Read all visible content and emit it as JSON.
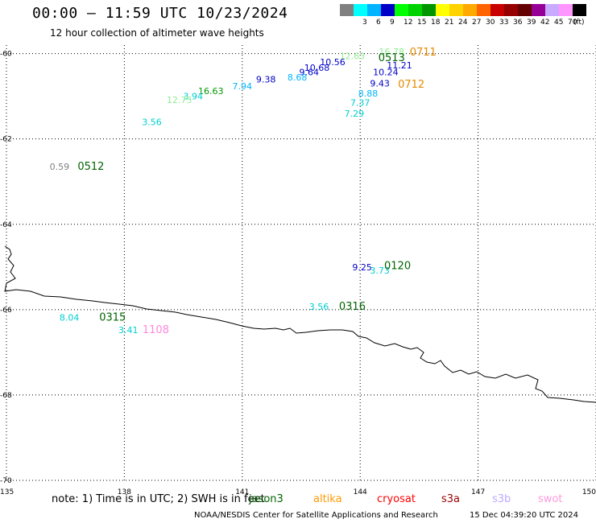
{
  "header": {
    "title": "00:00 – 11:59 UTC 10/23/2024",
    "subtitle": "12 hour collection of altimeter wave heights"
  },
  "legend": {
    "unit": "(ft)",
    "bins": [
      {
        "label": "",
        "color": "#808080"
      },
      {
        "label": "3",
        "color": "#00ffff"
      },
      {
        "label": "6",
        "color": "#00b4ff"
      },
      {
        "label": "9",
        "color": "#0000c8"
      },
      {
        "label": "12",
        "color": "#00ff00"
      },
      {
        "label": "15",
        "color": "#00d200"
      },
      {
        "label": "18",
        "color": "#009600"
      },
      {
        "label": "21",
        "color": "#ffff00"
      },
      {
        "label": "24",
        "color": "#ffd200"
      },
      {
        "label": "27",
        "color": "#ffaa00"
      },
      {
        "label": "30",
        "color": "#ff6400"
      },
      {
        "label": "33",
        "color": "#c80000"
      },
      {
        "label": "36",
        "color": "#960000"
      },
      {
        "label": "39",
        "color": "#640000"
      },
      {
        "label": "42",
        "color": "#960096"
      },
      {
        "label": "45",
        "color": "#c8aaff"
      },
      {
        "label": "70",
        "color": "#ff96ff"
      },
      {
        "label": "",
        "color": "#000000"
      }
    ]
  },
  "map": {
    "lon_range": [
      135,
      150
    ],
    "lat_range": [
      -70,
      -59.8
    ],
    "lon_ticks": [
      "135",
      "138",
      "141",
      "144",
      "147",
      "150"
    ],
    "lat_ticks": [
      "-60",
      "-62",
      "-64",
      "-66",
      "-68",
      "-70"
    ],
    "grid": "dotted"
  },
  "observations": [
    {
      "text": "12.63",
      "lon": 143.8,
      "lat": -60.05,
      "color": "#90ee90"
    },
    {
      "text": "16.78",
      "lon": 144.8,
      "lat": -59.95,
      "color": "#90ee90"
    },
    {
      "text": "0513",
      "lon": 144.8,
      "lat": -60.1,
      "color": "#006400",
      "pass": true
    },
    {
      "text": "0711",
      "lon": 145.6,
      "lat": -59.97,
      "color": "#e68a00",
      "pass": true
    },
    {
      "text": "11.21",
      "lon": 145.0,
      "lat": -60.27,
      "color": "#0000c8"
    },
    {
      "text": "10.56",
      "lon": 143.3,
      "lat": -60.2,
      "color": "#0000c8"
    },
    {
      "text": "10.68",
      "lon": 142.9,
      "lat": -60.33,
      "color": "#0000c8"
    },
    {
      "text": "9.64",
      "lon": 142.7,
      "lat": -60.43,
      "color": "#0000c8"
    },
    {
      "text": "10.24",
      "lon": 144.65,
      "lat": -60.43,
      "color": "#0000c8"
    },
    {
      "text": "8.68",
      "lon": 142.4,
      "lat": -60.55,
      "color": "#00b4ff"
    },
    {
      "text": "9.38",
      "lon": 141.6,
      "lat": -60.6,
      "color": "#0000c8"
    },
    {
      "text": "9.43",
      "lon": 144.5,
      "lat": -60.7,
      "color": "#0000c8"
    },
    {
      "text": "0712",
      "lon": 145.3,
      "lat": -60.72,
      "color": "#e68a00",
      "pass": true
    },
    {
      "text": "7.94",
      "lon": 141.0,
      "lat": -60.76,
      "color": "#00b4ff"
    },
    {
      "text": "16.63",
      "lon": 140.2,
      "lat": -60.87,
      "color": "#009600"
    },
    {
      "text": "8.88",
      "lon": 144.2,
      "lat": -60.93,
      "color": "#00b4ff"
    },
    {
      "text": "3.94",
      "lon": 139.75,
      "lat": -61.0,
      "color": "#00ced1"
    },
    {
      "text": "12.75",
      "lon": 139.4,
      "lat": -61.08,
      "color": "#90ee90"
    },
    {
      "text": "7.37",
      "lon": 144.0,
      "lat": -61.15,
      "color": "#00ced1"
    },
    {
      "text": "7.29",
      "lon": 143.85,
      "lat": -61.4,
      "color": "#00ced1"
    },
    {
      "text": "3.56",
      "lon": 138.7,
      "lat": -61.6,
      "color": "#00ced1"
    },
    {
      "text": "0.59",
      "lon": 136.35,
      "lat": -62.65,
      "color": "#808080"
    },
    {
      "text": "0512",
      "lon": 137.15,
      "lat": -62.65,
      "color": "#006400",
      "pass": true
    },
    {
      "text": "9.25",
      "lon": 144.05,
      "lat": -65.0,
      "color": "#0000c8"
    },
    {
      "text": "3.73",
      "lon": 144.5,
      "lat": -65.08,
      "color": "#00ced1"
    },
    {
      "text": "0120",
      "lon": 144.95,
      "lat": -64.98,
      "color": "#006400",
      "pass": true
    },
    {
      "text": "3.56",
      "lon": 142.95,
      "lat": -65.93,
      "color": "#00ced1"
    },
    {
      "text": "0316",
      "lon": 143.8,
      "lat": -65.93,
      "color": "#006400",
      "pass": true
    },
    {
      "text": "8.04",
      "lon": 136.6,
      "lat": -66.18,
      "color": "#00ced1"
    },
    {
      "text": "0315",
      "lon": 137.7,
      "lat": -66.18,
      "color": "#006400",
      "pass": true
    },
    {
      "text": "3.41",
      "lon": 138.1,
      "lat": -66.47,
      "color": "#00ced1"
    },
    {
      "text": "1108",
      "lon": 138.8,
      "lat": -66.47,
      "color": "#ff88dd",
      "pass": true
    }
  ],
  "footer": {
    "note": "note:  1) Time is in UTC; 2) SWH is in feet",
    "satellites": [
      {
        "name": "jason3",
        "color": "#006400"
      },
      {
        "name": "altika",
        "color": "#ff9900"
      },
      {
        "name": "cryosat",
        "color": "#ff0000"
      },
      {
        "name": "s3a",
        "color": "#990000"
      },
      {
        "name": "s3b",
        "color": "#bbaaff"
      },
      {
        "name": "swot",
        "color": "#ff99dd"
      }
    ],
    "credit": "NOAA/NESDIS Center for Satellite Applications and Research",
    "timestamp": "15 Dec 04:39:20 UTC 2024"
  }
}
